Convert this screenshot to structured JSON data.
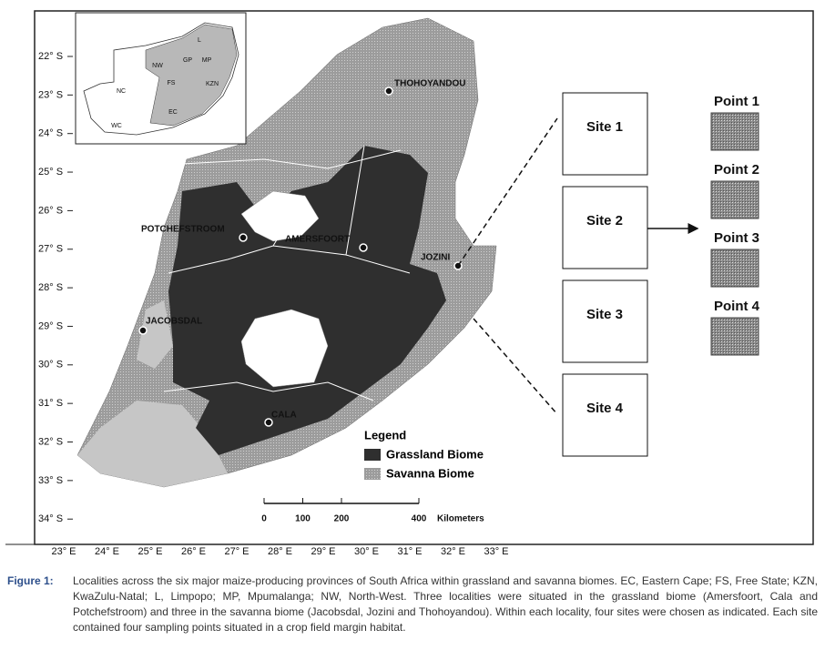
{
  "map": {
    "latitude_labels": [
      "22° S",
      "23° S",
      "24° S",
      "25° S",
      "26° S",
      "27° S",
      "28° S",
      "29° S",
      "30° S",
      "31° S",
      "32° S",
      "33° S",
      "34° S"
    ],
    "longitude_labels": [
      "23° E",
      "24° E",
      "25° E",
      "26° E",
      "27° E",
      "28° E",
      "29° E",
      "30° E",
      "31° E",
      "32° E",
      "33° E"
    ],
    "inset_labels": [
      "L",
      "NW",
      "GP",
      "MP",
      "FS",
      "KZN",
      "NC",
      "EC",
      "WC"
    ],
    "localities": [
      "THOHOYANDOU",
      "POTCHEFSTROOM",
      "AMERSFOORT",
      "JOZINI",
      "JACOBSDAL",
      "CALA"
    ],
    "legend": {
      "title": "Legend",
      "items": [
        "Grassland Biome",
        "Savanna Biome"
      ]
    },
    "scale_bar": {
      "ticks": [
        0,
        100,
        200,
        400
      ],
      "unit": "Kilometers"
    }
  },
  "sampling": {
    "sites": [
      "Site 1",
      "Site 2",
      "Site 3",
      "Site 4"
    ],
    "points": [
      "Point 1",
      "Point 2",
      "Point 3",
      "Point 4"
    ]
  },
  "caption": {
    "label": "Figure 1:",
    "text": "Localities across the six major maize-producing provinces of South Africa within grassland and savanna biomes. EC, Eastern Cape; FS, Free State; KZN, KwaZulu-Natal; L, Limpopo; MP, Mpumalanga; NW, North-West. Three localities were situated in the grassland biome (Amersfoort, Cala and Potchefstroom) and three in the savanna biome (Jacobsdal, Jozini and Thohoyandou). Within each locality, four sites were chosen as indicated. Each site contained four sampling points situated in a crop field margin habitat."
  }
}
